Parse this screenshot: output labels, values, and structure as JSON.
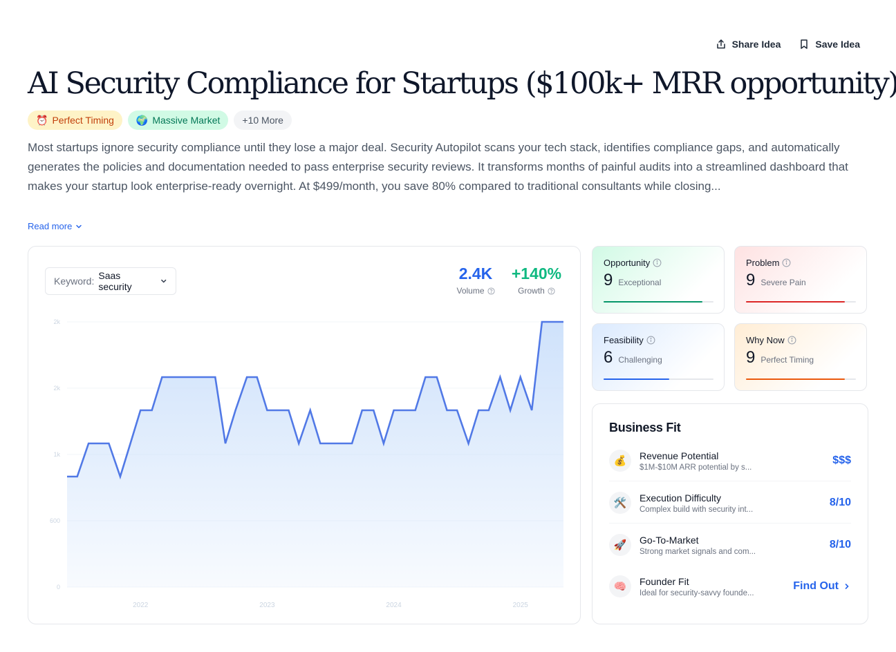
{
  "actions": {
    "share_label": "Share Idea",
    "save_label": "Save Idea"
  },
  "title": "AI Security Compliance for Startups ($100k+ MRR opportunity)",
  "tags": [
    {
      "icon": "⏰",
      "label": "Perfect Timing"
    },
    {
      "icon": "🌍",
      "label": "Massive Market"
    },
    {
      "label": "+10 More"
    }
  ],
  "description": "Most startups ignore security compliance until they lose a major deal. Security Autopilot scans your tech stack, identifies compliance gaps, and automatically generates the policies and documentation needed to pass enterprise security reviews. It transforms months of painful audits into a streamlined dashboard that makes your startup look enterprise-ready overnight. At $499/month, you save 80% compared to traditional consultants while closing...",
  "read_more_label": "Read more",
  "keyword": {
    "label": "Keyword:",
    "value": "Saas security"
  },
  "stats": {
    "volume": {
      "value": "2.4K",
      "label": "Volume"
    },
    "growth": {
      "value": "+140%",
      "label": "Growth"
    }
  },
  "chart_data": {
    "type": "area",
    "title": "",
    "xlabel": "",
    "ylabel": "",
    "y_tick_labels": [
      "0",
      "600",
      "1k",
      "2k",
      "2k"
    ],
    "y_tick_values": [
      0,
      600,
      1200,
      1800,
      2400
    ],
    "x_tick_labels": [
      "2022",
      "2023",
      "2024",
      "2025"
    ],
    "x_tick_values": [
      2022,
      2023,
      2024,
      2025
    ],
    "xlim": [
      2021.42,
      2025.34
    ],
    "ylim": [
      0,
      2400
    ],
    "x": [
      2021.42,
      2021.5,
      2021.59,
      2021.67,
      2021.75,
      2021.84,
      2021.92,
      2022.0,
      2022.09,
      2022.17,
      2022.25,
      2022.34,
      2022.42,
      2022.5,
      2022.59,
      2022.67,
      2022.75,
      2022.84,
      2022.92,
      2023.0,
      2023.09,
      2023.17,
      2023.25,
      2023.34,
      2023.42,
      2023.5,
      2023.59,
      2023.67,
      2023.75,
      2023.84,
      2023.92,
      2024.0,
      2024.09,
      2024.17,
      2024.25,
      2024.34,
      2024.42,
      2024.5,
      2024.59,
      2024.67,
      2024.75,
      2024.84,
      2024.92,
      2025.0,
      2025.09,
      2025.17,
      2025.25,
      2025.34
    ],
    "values": [
      1000,
      1000,
      1300,
      1300,
      1300,
      1000,
      1300,
      1600,
      1600,
      1900,
      1900,
      1900,
      1900,
      1900,
      1900,
      1300,
      1600,
      1900,
      1900,
      1600,
      1600,
      1600,
      1300,
      1600,
      1300,
      1300,
      1300,
      1300,
      1600,
      1600,
      1300,
      1600,
      1600,
      1600,
      1900,
      1900,
      1600,
      1600,
      1300,
      1600,
      1600,
      1900,
      1600,
      1900,
      1600,
      2400,
      2400,
      2400
    ],
    "series_color": "#5179e6",
    "fill_color": "#cfe2fb"
  },
  "metrics": [
    {
      "title": "Opportunity",
      "score": "9",
      "desc": "Exceptional",
      "value": 9,
      "color": "#059669"
    },
    {
      "title": "Problem",
      "score": "9",
      "desc": "Severe Pain",
      "value": 9,
      "color": "#dc2626"
    },
    {
      "title": "Feasibility",
      "score": "6",
      "desc": "Challenging",
      "value": 6,
      "color": "#2563eb"
    },
    {
      "title": "Why Now",
      "score": "9",
      "desc": "Perfect Timing",
      "value": 9,
      "color": "#ea580c"
    }
  ],
  "business_fit": {
    "title": "Business Fit",
    "rows": [
      {
        "icon": "💰",
        "name": "Revenue Potential",
        "sub": "$1M-$10M ARR potential by s...",
        "value": "$$$"
      },
      {
        "icon": "🛠️",
        "name": "Execution Difficulty",
        "sub": "Complex build with security int...",
        "value": "8/10"
      },
      {
        "icon": "🚀",
        "name": "Go-To-Market",
        "sub": "Strong market signals and com...",
        "value": "8/10"
      },
      {
        "icon": "🧠",
        "name": "Founder Fit",
        "sub": "Ideal for security-savvy founde...",
        "value": "Find Out"
      }
    ]
  }
}
